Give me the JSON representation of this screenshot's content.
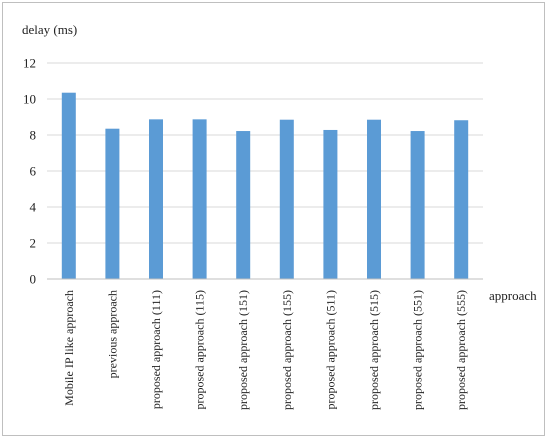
{
  "chart_data": {
    "type": "bar",
    "title": "",
    "ylabel": "delay (ms)",
    "xlabel": "approach",
    "ylim": [
      0,
      12
    ],
    "yticks": [
      0,
      2,
      4,
      6,
      8,
      10,
      12
    ],
    "grid": true,
    "legend": "none",
    "bar_color": "#5b9bd5",
    "categories": [
      "Mobile IP like approach",
      "previous approach",
      "proposed approach (111)",
      "proposed approach (115)",
      "proposed approach (151)",
      "proposed approach (155)",
      "proposed approach (511)",
      "proposed approach (515)",
      "proposed approach (551)",
      "proposed approach (555)"
    ],
    "values": [
      10.35,
      8.35,
      8.87,
      8.87,
      8.22,
      8.85,
      8.28,
      8.85,
      8.22,
      8.82
    ]
  }
}
